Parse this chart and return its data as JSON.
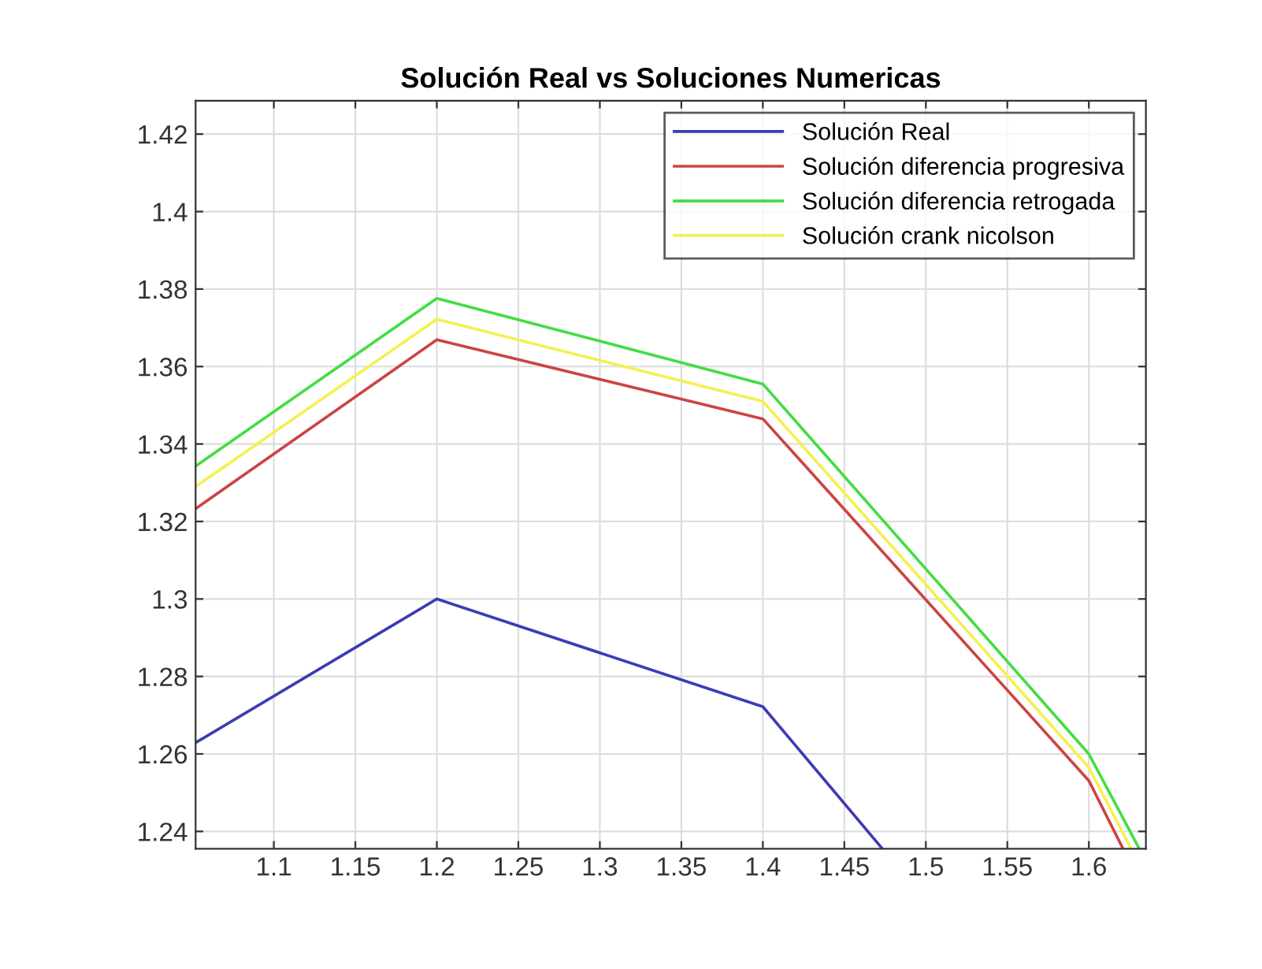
{
  "chart_data": {
    "type": "line",
    "title": "Solución Real vs Soluciones Numericas",
    "xlim": [
      1.052,
      1.635
    ],
    "ylim": [
      1.2355,
      1.4286
    ],
    "xticks": [
      1.1,
      1.15,
      1.2,
      1.25,
      1.3,
      1.35,
      1.4,
      1.45,
      1.5,
      1.55,
      1.6
    ],
    "yticks": [
      1.24,
      1.26,
      1.28,
      1.3,
      1.32,
      1.34,
      1.36,
      1.38,
      1.4,
      1.42
    ],
    "grid": true,
    "legend": "top right",
    "line_style": "solid",
    "marker": "none",
    "series": [
      {
        "name": "Solución Real",
        "color": "#3c3cb4",
        "x": [
          1.052,
          1.2,
          1.4,
          1.4734
        ],
        "values": [
          1.2629,
          1.3,
          1.2722,
          1.2355
        ]
      },
      {
        "name": "Solución diferencia progresiva",
        "color": "#cc4444",
        "x": [
          1.052,
          1.2,
          1.4,
          1.6,
          1.621
        ],
        "values": [
          1.3233,
          1.3669,
          1.3465,
          1.2531,
          1.2355
        ]
      },
      {
        "name": "Solución diferencia retrogada",
        "color": "#44dd44",
        "x": [
          1.052,
          1.2,
          1.4,
          1.6,
          1.631
        ],
        "values": [
          1.3343,
          1.3776,
          1.3555,
          1.26,
          1.2355
        ]
      },
      {
        "name": "Solución crank nicolson",
        "color": "#f5f050",
        "x": [
          1.052,
          1.2,
          1.4,
          1.6,
          1.626
        ],
        "values": [
          1.329,
          1.3722,
          1.351,
          1.2565,
          1.2355
        ]
      }
    ]
  }
}
